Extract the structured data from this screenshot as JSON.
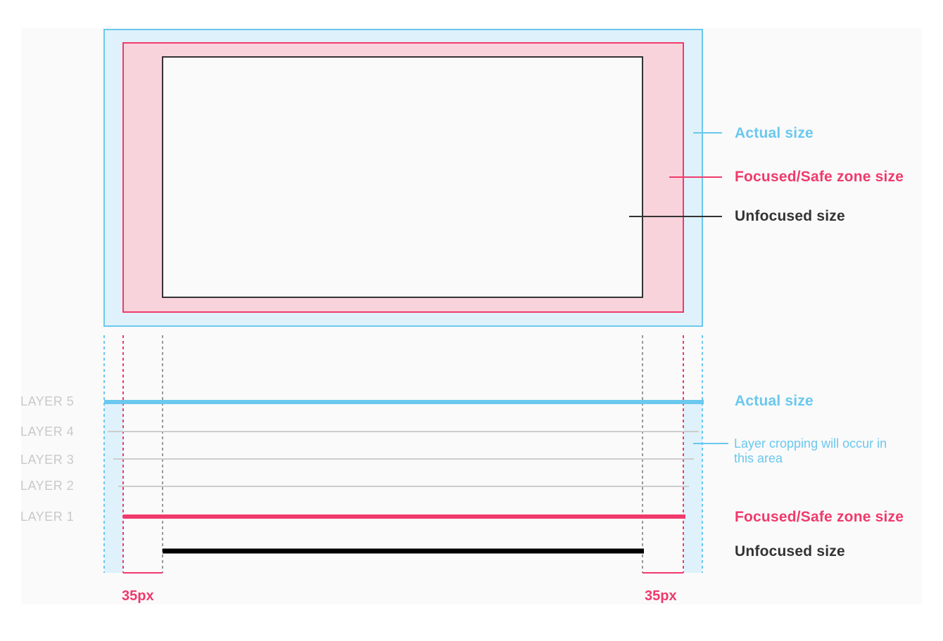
{
  "colors": {
    "actual": "#6ac8ee",
    "actual_fill": "#dff2fb",
    "safe": "#f03a6c",
    "safe_fill": "#f9d3dc",
    "unfocused": "#333333",
    "layer_line": "#cccccc",
    "layer_text": "#c9c9c9"
  },
  "top_callouts": {
    "actual": "Actual size",
    "safe": "Focused/Safe zone size",
    "unfocused": "Unfocused size"
  },
  "layers": [
    "LAYER 5",
    "LAYER 4",
    "LAYER 3",
    "LAYER 2",
    "LAYER 1"
  ],
  "bottom_callouts": {
    "actual": "Actual size",
    "cropping": "Layer cropping will occur in this area",
    "safe": "Focused/Safe zone size",
    "unfocused": "Unfocused size"
  },
  "margin_labels": [
    "35px",
    "35px"
  ]
}
